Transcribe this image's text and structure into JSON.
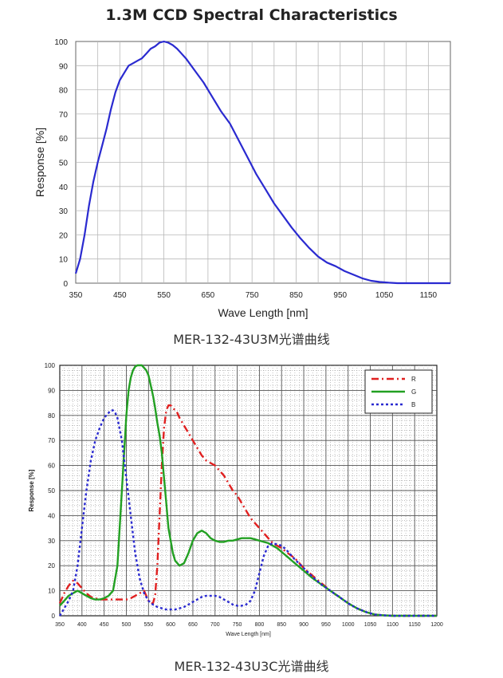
{
  "charts": {
    "top": {
      "title": "1.3M CCD Spectral Characteristics",
      "caption": "MER-132-43U3M光谱曲线"
    },
    "bottom": {
      "caption": "MER-132-43U3C光谱曲线"
    }
  },
  "chart_data": [
    {
      "type": "line",
      "title": "1.3M CCD Spectral Characteristics",
      "xlabel": "Wave Length [nm]",
      "ylabel": "Response [%]",
      "xlim": [
        350,
        1200
      ],
      "ylim": [
        0,
        100
      ],
      "xticks": [
        350,
        450,
        550,
        650,
        750,
        850,
        950,
        1050,
        1150
      ],
      "yticks": [
        0,
        10,
        20,
        30,
        40,
        50,
        60,
        70,
        80,
        90,
        100
      ],
      "grid": true,
      "colors": {
        "line": "#2a2ad0",
        "grid": "#b8b8b8"
      },
      "series": [
        {
          "x": [
            350,
            360,
            370,
            380,
            390,
            400,
            410,
            420,
            430,
            440,
            450,
            460,
            470,
            480,
            490,
            500,
            510,
            520,
            530,
            540,
            550,
            560,
            570,
            580,
            590,
            600,
            620,
            640,
            660,
            680,
            700,
            720,
            740,
            760,
            780,
            800,
            820,
            840,
            860,
            880,
            900,
            920,
            940,
            960,
            980,
            1000,
            1020,
            1040,
            1060,
            1080,
            1100,
            1120,
            1140,
            1160,
            1180,
            1200
          ],
          "values": [
            4,
            10,
            20,
            32,
            42,
            50,
            57,
            64,
            72,
            79,
            84,
            87,
            90,
            91,
            92,
            93,
            95,
            97,
            98,
            99.5,
            100,
            99.5,
            98.5,
            97,
            95,
            93,
            88,
            83,
            77,
            71,
            66,
            59,
            52,
            45,
            39,
            33,
            28,
            23,
            18.5,
            14.5,
            11,
            8.5,
            7,
            5,
            3.5,
            2,
            1,
            0.5,
            0.2,
            0,
            0,
            0,
            0,
            0,
            0,
            0
          ]
        }
      ]
    },
    {
      "type": "line",
      "xlabel": "Wave Length [nm]",
      "ylabel": "Response [%]",
      "xlim": [
        350,
        1200
      ],
      "ylim": [
        0,
        100
      ],
      "xticks": [
        350,
        400,
        450,
        500,
        550,
        600,
        650,
        700,
        750,
        800,
        850,
        900,
        950,
        1000,
        1050,
        1100,
        1150,
        1200
      ],
      "yticks": [
        0,
        10,
        20,
        30,
        40,
        50,
        60,
        70,
        80,
        90,
        100
      ],
      "grid": true,
      "legend": "top-right",
      "series": [
        {
          "name": "R",
          "color": "#e02020",
          "x": [
            350,
            360,
            370,
            380,
            390,
            400,
            410,
            420,
            430,
            440,
            450,
            460,
            470,
            480,
            490,
            500,
            510,
            520,
            530,
            540,
            545,
            550,
            555,
            560,
            565,
            570,
            575,
            580,
            585,
            590,
            595,
            600,
            605,
            610,
            615,
            620,
            630,
            640,
            650,
            660,
            670,
            680,
            690,
            700,
            710,
            720,
            730,
            740,
            750,
            760,
            770,
            780,
            790,
            800,
            810,
            820,
            830,
            840,
            850,
            860,
            880,
            900,
            920,
            940,
            960,
            980,
            1000,
            1020,
            1040,
            1060,
            1080,
            1100,
            1120,
            1140,
            1160,
            1180,
            1200
          ],
          "values": [
            5,
            9,
            12,
            14,
            13,
            11,
            9,
            7.5,
            7,
            6.5,
            6.5,
            6.5,
            6.5,
            6.5,
            6.5,
            6.5,
            7,
            8,
            9,
            10,
            8,
            6,
            5,
            5,
            8,
            20,
            40,
            60,
            75,
            82,
            84,
            84,
            83,
            82,
            81,
            79,
            76,
            73,
            70,
            67,
            64,
            62,
            61,
            60,
            58,
            56,
            53,
            50,
            48,
            45,
            42,
            39,
            37,
            35,
            33,
            31,
            29,
            28,
            27,
            25.5,
            23,
            19,
            16,
            13,
            10,
            7.5,
            5,
            3,
            1.5,
            0.5,
            0.2,
            0,
            0,
            0,
            0,
            0,
            0
          ]
        },
        {
          "name": "G",
          "color": "#22a022",
          "x": [
            350,
            360,
            370,
            380,
            390,
            400,
            410,
            420,
            430,
            440,
            450,
            460,
            470,
            480,
            490,
            500,
            505,
            510,
            515,
            520,
            525,
            530,
            535,
            540,
            545,
            550,
            555,
            560,
            565,
            570,
            575,
            580,
            585,
            590,
            595,
            600,
            605,
            610,
            620,
            630,
            640,
            650,
            660,
            670,
            680,
            690,
            700,
            710,
            720,
            730,
            740,
            750,
            760,
            770,
            780,
            790,
            800,
            810,
            820,
            830,
            840,
            850,
            860,
            880,
            900,
            920,
            940,
            960,
            980,
            1000,
            1020,
            1040,
            1060,
            1080,
            1100,
            1120,
            1140,
            1160,
            1180,
            1200
          ],
          "values": [
            4,
            6,
            8,
            9,
            10,
            9,
            8,
            7,
            6.5,
            6.5,
            7,
            8,
            10,
            20,
            50,
            80,
            90,
            95,
            98,
            99.5,
            100,
            100,
            100,
            99,
            98,
            96,
            92,
            88,
            83,
            77,
            72,
            65,
            55,
            45,
            35,
            30,
            25,
            22,
            20,
            21,
            25,
            30,
            33,
            34,
            33,
            31,
            30,
            29.5,
            29.5,
            30,
            30,
            30.5,
            31,
            31,
            31,
            30.5,
            30,
            29.5,
            29,
            28,
            27,
            25.5,
            24,
            21,
            18,
            15,
            12.5,
            10,
            7.5,
            5,
            3,
            1.5,
            0.5,
            0.2,
            0,
            0,
            0,
            0,
            0,
            0
          ]
        },
        {
          "name": "B",
          "color": "#2a2ad0",
          "x": [
            350,
            360,
            370,
            380,
            390,
            400,
            410,
            420,
            430,
            440,
            450,
            460,
            465,
            470,
            475,
            480,
            490,
            500,
            510,
            520,
            530,
            540,
            550,
            560,
            570,
            580,
            590,
            600,
            610,
            620,
            630,
            640,
            650,
            660,
            670,
            680,
            690,
            700,
            710,
            720,
            730,
            740,
            750,
            760,
            770,
            780,
            790,
            800,
            810,
            820,
            830,
            840,
            850,
            860,
            880,
            900,
            920,
            940,
            960,
            980,
            1000,
            1020,
            1040,
            1060,
            1080,
            1100,
            1120,
            1140,
            1160,
            1180,
            1200
          ],
          "values": [
            0,
            3,
            6,
            10,
            20,
            35,
            50,
            62,
            70,
            75,
            79,
            81,
            82,
            82,
            81,
            79,
            70,
            55,
            40,
            25,
            15,
            9,
            6,
            4.5,
            3.5,
            3,
            2.5,
            2.5,
            2.5,
            3,
            3.5,
            4.5,
            5.5,
            6.5,
            7.5,
            8,
            8,
            8,
            7.5,
            6.5,
            5.5,
            4.5,
            4,
            4,
            4.5,
            6,
            10,
            17,
            24,
            28,
            29,
            28.5,
            28,
            26.5,
            22.5,
            19,
            15.5,
            12.5,
            10,
            7.5,
            5,
            3,
            1.5,
            0.5,
            0.2,
            0,
            0,
            0,
            0,
            0,
            0
          ]
        }
      ]
    }
  ]
}
